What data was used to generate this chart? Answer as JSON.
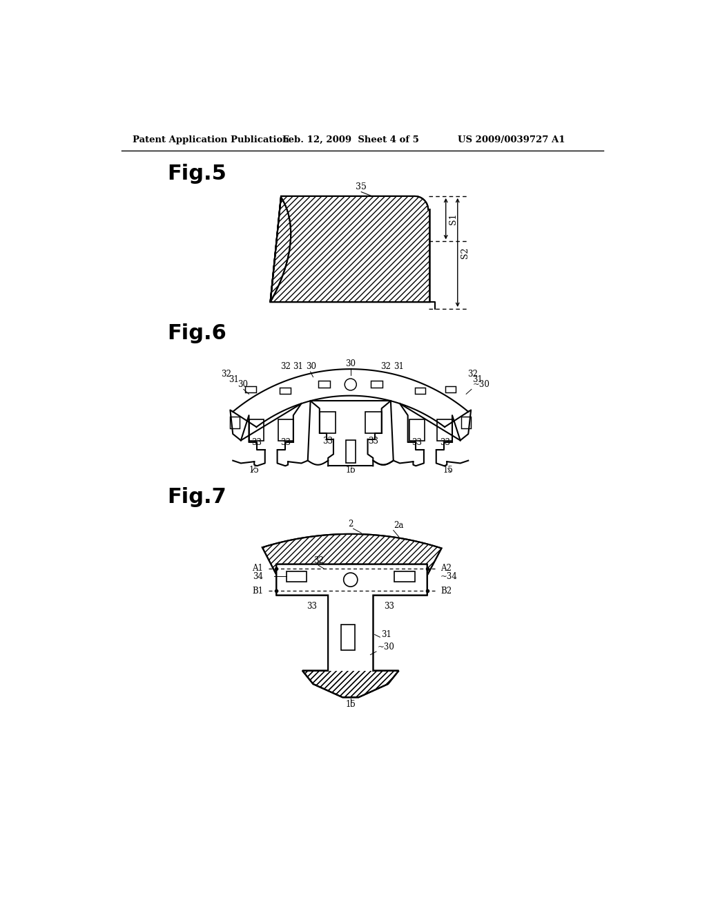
{
  "background_color": "#ffffff",
  "header_left": "Patent Application Publication",
  "header_center": "Feb. 12, 2009  Sheet 4 of 5",
  "header_right": "US 2009/0039727 A1",
  "fig5_label": "Fig.5",
  "fig6_label": "Fig.6",
  "fig7_label": "Fig.7",
  "line_color": "#000000"
}
